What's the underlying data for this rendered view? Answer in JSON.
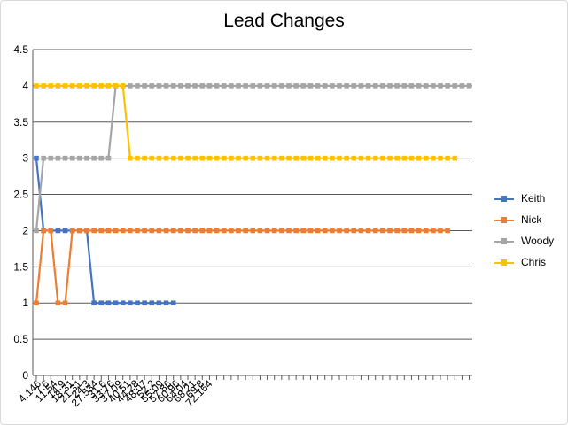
{
  "chart_data": {
    "type": "line",
    "title": "Lead Changes",
    "xlabel": "",
    "ylabel": "",
    "ylim": [
      0,
      4.5
    ],
    "yticks": [
      "0",
      "0.5",
      "1",
      "1.5",
      "2",
      "2.5",
      "3",
      "3.5",
      "4",
      "4.5"
    ],
    "x_tick_labels": [
      "4.146",
      "7.6",
      "11.54",
      "14.9",
      "18.31",
      "21.31",
      "24.3",
      "27.534",
      "31.6",
      "33.76",
      "37.09",
      "40.51",
      "44.28",
      "48.07",
      "52.2",
      "55.09",
      "57.86",
      "60.96",
      "64.04",
      "68.21",
      "69.8",
      "72.164"
    ],
    "grid": true,
    "legend_position": "right",
    "series": [
      {
        "name": "Keith",
        "color": "#4472c4",
        "values": [
          3,
          2,
          2,
          2,
          2,
          2,
          2,
          2,
          1,
          1,
          1,
          1,
          1,
          1,
          1,
          1,
          1,
          1,
          1,
          1
        ]
      },
      {
        "name": "Nick",
        "color": "#ed7d31",
        "values": [
          1,
          2,
          2,
          1,
          1,
          2,
          2,
          2,
          2,
          2,
          2,
          2,
          2,
          2,
          2,
          2,
          2,
          2,
          2,
          2,
          2,
          2,
          2,
          2,
          2,
          2,
          2,
          2,
          2,
          2,
          2,
          2,
          2,
          2,
          2,
          2,
          2,
          2,
          2,
          2,
          2,
          2,
          2,
          2,
          2,
          2,
          2,
          2,
          2,
          2,
          2,
          2,
          2,
          2,
          2,
          2,
          2,
          2
        ]
      },
      {
        "name": "Woody",
        "color": "#a5a5a5",
        "values": [
          2,
          3,
          3,
          3,
          3,
          3,
          3,
          3,
          3,
          3,
          3,
          4,
          4,
          4,
          4,
          4,
          4,
          4,
          4,
          4,
          4,
          4,
          4,
          4,
          4,
          4,
          4,
          4,
          4,
          4,
          4,
          4,
          4,
          4,
          4,
          4,
          4,
          4,
          4,
          4,
          4,
          4,
          4,
          4,
          4,
          4,
          4,
          4,
          4,
          4,
          4,
          4,
          4,
          4,
          4,
          4,
          4,
          4,
          4,
          4,
          4
        ]
      },
      {
        "name": "Chris",
        "color": "#ffc000",
        "values": [
          4,
          4,
          4,
          4,
          4,
          4,
          4,
          4,
          4,
          4,
          4,
          4,
          4,
          3,
          3,
          3,
          3,
          3,
          3,
          3,
          3,
          3,
          3,
          3,
          3,
          3,
          3,
          3,
          3,
          3,
          3,
          3,
          3,
          3,
          3,
          3,
          3,
          3,
          3,
          3,
          3,
          3,
          3,
          3,
          3,
          3,
          3,
          3,
          3,
          3,
          3,
          3,
          3,
          3,
          3,
          3,
          3,
          3,
          3
        ]
      }
    ]
  }
}
